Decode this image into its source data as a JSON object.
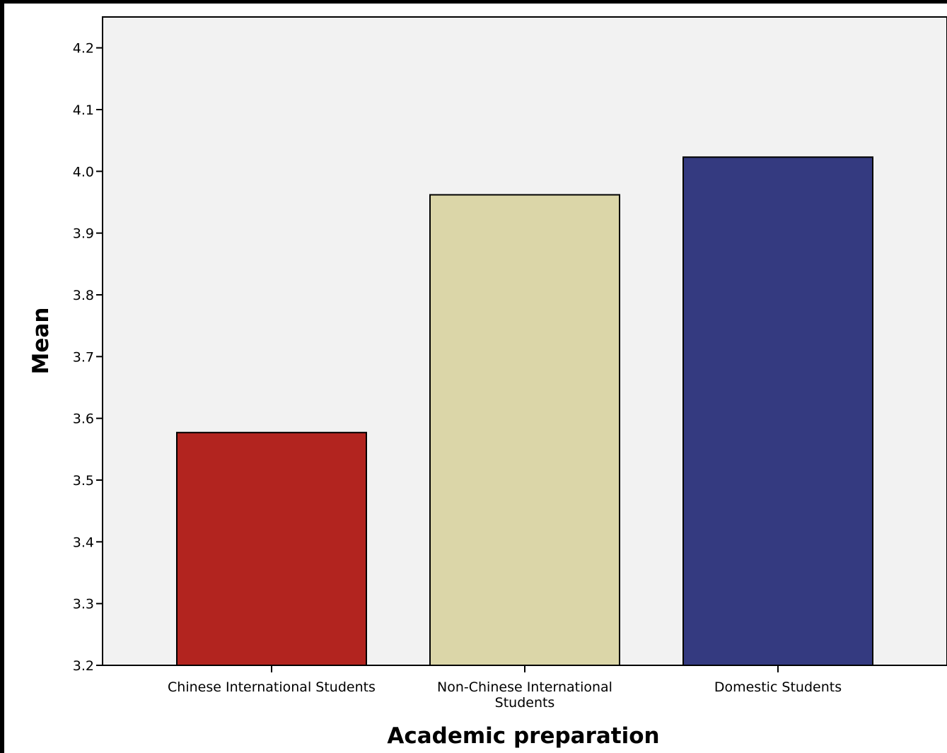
{
  "chart_data": {
    "type": "bar",
    "categories": [
      [
        "Chinese International Students"
      ],
      [
        "Non-Chinese International",
        "Students"
      ],
      [
        "Domestic Students"
      ]
    ],
    "values": [
      3.577,
      3.962,
      4.023
    ],
    "colors": [
      "#b2241f",
      "#dbd6a8",
      "#343a80"
    ],
    "title": "",
    "xlabel": "Academic preparation",
    "ylabel": "Mean",
    "ylim": [
      3.2,
      4.25
    ],
    "yticks": [
      "3.2",
      "3.3",
      "3.4",
      "3.5",
      "3.6",
      "3.7",
      "3.8",
      "3.9",
      "4.0",
      "4.1",
      "4.2"
    ],
    "plot_background": "#f2f2f2",
    "grid": false,
    "legend": "none"
  }
}
